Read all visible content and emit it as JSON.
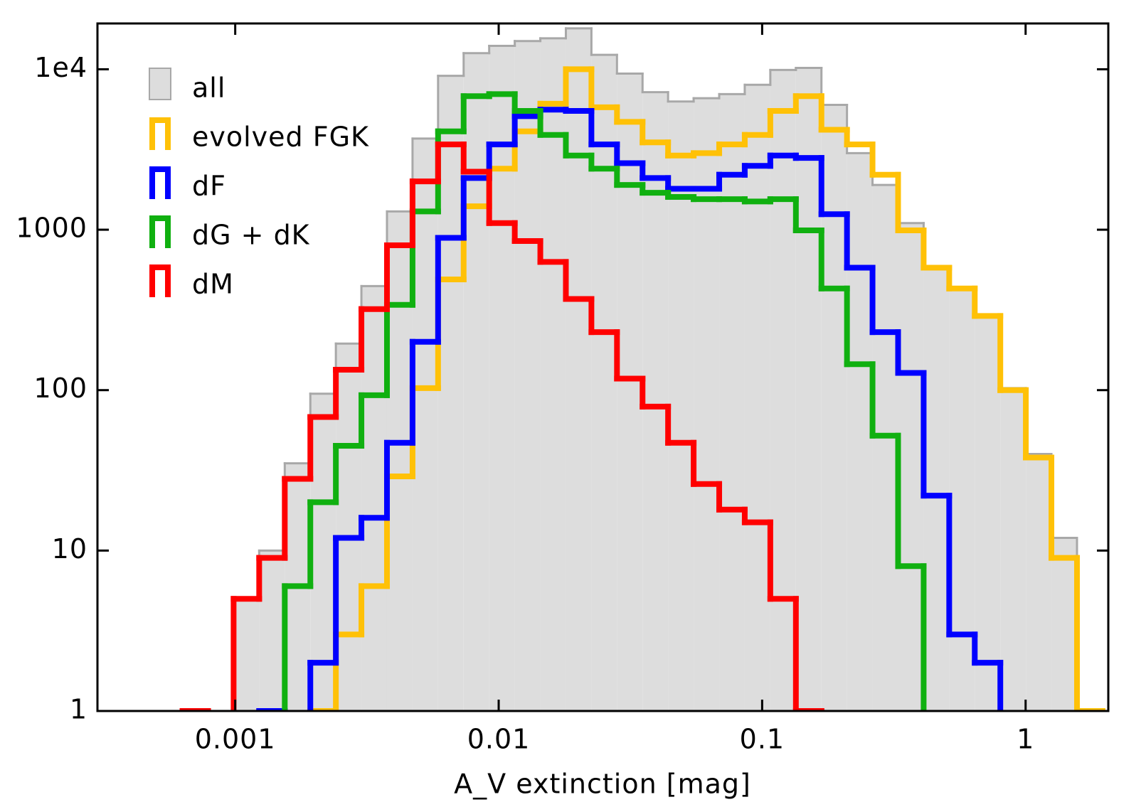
{
  "chart_data": {
    "type": "histogram",
    "xlabel": "A_V extinction [mag]",
    "xscale": "log",
    "yscale": "log",
    "xlim": [
      0.0003,
      2.06
    ],
    "ylim": [
      1,
      19300
    ],
    "xticks": [
      0.001,
      0.01,
      0.1,
      1
    ],
    "yticks": [
      1,
      10,
      100,
      1000,
      {
        "value": 10000,
        "label": "1e4"
      }
    ],
    "legend": "upper left",
    "bins": [
      0.000631,
      0.000789,
      0.000986,
      0.001233,
      0.001542,
      0.001928,
      0.00241,
      0.003013,
      0.003767,
      0.00471,
      0.005888,
      0.007362,
      0.009204,
      0.01151,
      0.01439,
      0.01799,
      0.02249,
      0.02812,
      0.03516,
      0.04395,
      0.05495,
      0.06871,
      0.0859,
      0.1074,
      0.1343,
      0.1679,
      0.2099,
      0.2624,
      0.3281,
      0.4102,
      0.5129,
      0.6412,
      0.8017,
      1.002,
      1.253,
      1.567,
      1.959
    ],
    "series": [
      {
        "name": "all",
        "histtype": "stepfilled",
        "color": "#dddddd",
        "edgecolor": "#a8a8a8",
        "values": [
          1,
          0,
          5,
          10,
          35,
          95,
          195,
          445,
          1300,
          3700,
          9100,
          12600,
          14000,
          15000,
          15600,
          18000,
          12300,
          9400,
          7200,
          6300,
          6600,
          7000,
          8000,
          9900,
          10200,
          6000,
          3000,
          1900,
          1100,
          580,
          430,
          290,
          103,
          40,
          12,
          1
        ]
      },
      {
        "name": "evolved FGK",
        "histtype": "step",
        "color": "#ffc107",
        "values": [
          0,
          0,
          0,
          0,
          0,
          1,
          3,
          6,
          29,
          103,
          490,
          1400,
          2400,
          4100,
          6100,
          10000,
          5800,
          4700,
          3500,
          2900,
          3000,
          3400,
          3900,
          5500,
          6800,
          4200,
          3400,
          2200,
          990,
          580,
          430,
          290,
          100,
          38,
          9,
          1
        ]
      },
      {
        "name": "dF",
        "histtype": "step",
        "color": "#0000ff",
        "values": [
          0,
          0,
          0,
          1,
          0,
          2,
          12,
          16,
          47,
          200,
          890,
          2100,
          3400,
          5100,
          5600,
          5500,
          3400,
          2600,
          2100,
          1800,
          1800,
          2200,
          2500,
          2900,
          2800,
          1250,
          580,
          230,
          128,
          22,
          3,
          2,
          0,
          0,
          0,
          0
        ]
      },
      {
        "name": "dG + dK",
        "histtype": "step",
        "color": "#10b010",
        "values": [
          0,
          0,
          0,
          0,
          6,
          20,
          45,
          93,
          340,
          1300,
          4100,
          6800,
          7000,
          5500,
          3900,
          2900,
          2400,
          1900,
          1700,
          1600,
          1550,
          1550,
          1500,
          1550,
          990,
          430,
          145,
          52,
          8,
          0,
          0,
          0,
          0,
          0,
          0,
          0
        ]
      },
      {
        "name": "dM",
        "histtype": "step",
        "color": "#ff0000",
        "values": [
          1,
          0,
          5,
          9,
          28,
          68,
          134,
          320,
          800,
          2000,
          3400,
          2300,
          1100,
          850,
          630,
          370,
          230,
          118,
          79,
          47,
          26,
          18,
          15,
          5,
          1,
          0,
          0,
          0,
          0,
          0,
          0,
          0,
          0,
          0,
          0,
          0
        ]
      }
    ]
  }
}
